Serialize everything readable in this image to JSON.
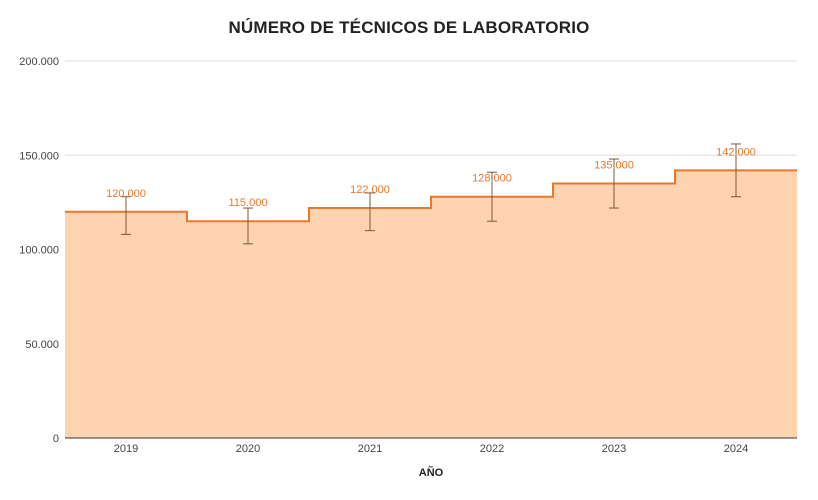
{
  "chart_data": {
    "type": "area",
    "title": "NÚMERO DE TÉCNICOS DE LABORATORIO",
    "xlabel": "AÑO",
    "ylabel": "",
    "categories": [
      "2019",
      "2020",
      "2021",
      "2022",
      "2023",
      "2024"
    ],
    "series": [
      {
        "values": [
          120000,
          115000,
          122000,
          128000,
          135000,
          142000
        ],
        "error_low": [
          108000,
          103000,
          110000,
          115000,
          122000,
          128000
        ],
        "error_high": [
          128000,
          122000,
          130000,
          141000,
          148000,
          156000
        ]
      }
    ],
    "data_labels": [
      "120.000",
      "115.000",
      "122.000",
      "128.000",
      "135.000",
      "142.000"
    ],
    "y_ticks": [
      {
        "value": 0,
        "label": "0"
      },
      {
        "value": 50000,
        "label": "50.000"
      },
      {
        "value": 100000,
        "label": "100.000"
      },
      {
        "value": 150000,
        "label": "150.000"
      },
      {
        "value": 200000,
        "label": "200.000"
      }
    ],
    "ylim": [
      0,
      200000
    ],
    "step": true,
    "grid": true,
    "legend": "none",
    "colors": {
      "line": "#e8782a",
      "fill": "#fdd3b0",
      "error_bar": "#7a5a3a",
      "grid": "#dddddd",
      "axis": "#333333"
    }
  }
}
